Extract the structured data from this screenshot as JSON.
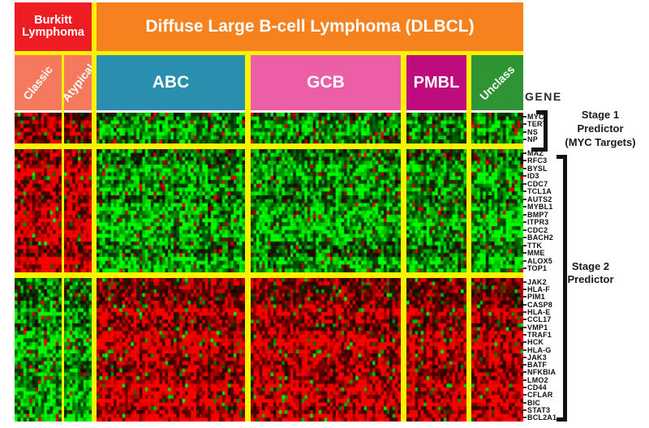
{
  "figure": {
    "bg_color": "#ffffff",
    "gene_axis_label": "GENE",
    "separator_color": "#FFF200",
    "text_color": "#1a1a1a"
  },
  "header": {
    "burkitt": {
      "lines": [
        "Burkitt",
        "Lymphoma"
      ],
      "color": "#EE1C23",
      "text_color": "#ffffff"
    },
    "dlbcl": {
      "label": "Diffuse Large B-cell Lymphoma (DLBCL)",
      "color": "#F6821F",
      "text_color": "#ffffff"
    }
  },
  "annotation_right": {
    "stage1": {
      "lines": [
        "Stage 1",
        "Predictor",
        "(MYC Targets)"
      ]
    },
    "stage2": {
      "lines": [
        "Stage 2",
        "Predictor"
      ]
    }
  },
  "chart_data": {
    "type": "heatmap",
    "title": "Gene expression heatmap: Burkitt Lymphoma vs Diffuse Large B-cell Lymphoma (DLBCL)",
    "colorscale": {
      "high": "#FF0000",
      "mid": "#000000",
      "low": "#00FF00",
      "legend": "red = high expression, green = low expression"
    },
    "column_groups": [
      {
        "id": "classic",
        "label": "Classic",
        "parent": "Burkitt Lymphoma",
        "color": "#F5795D",
        "samples": 16,
        "rotated": true
      },
      {
        "id": "atypical",
        "label": "Atypical",
        "parent": "Burkitt Lymphoma",
        "color": "#F5795D",
        "samples": 10,
        "rotated": true
      },
      {
        "id": "abc",
        "label": "ABC",
        "parent": "DLBCL",
        "color": "#2A8FAF",
        "samples": 52,
        "rotated": false
      },
      {
        "id": "gcb",
        "label": "GCB",
        "parent": "DLBCL",
        "color": "#EC5FA6",
        "samples": 53,
        "rotated": false
      },
      {
        "id": "pmbl",
        "label": "PMBL",
        "parent": "DLBCL",
        "color": "#BE0B7D",
        "samples": 21,
        "rotated": false
      },
      {
        "id": "unclass",
        "label": "Unclass",
        "parent": "DLBCL",
        "color": "#2E9434",
        "samples": 18,
        "rotated": true
      }
    ],
    "row_blocks": [
      {
        "id": "stage1_myc_targets",
        "annotation": "Stage 1 Predictor (MYC Targets)",
        "genes": [
          "MYC",
          "TERT",
          "NS",
          "NP"
        ],
        "expression": {
          "classic": "high",
          "atypical": "high",
          "abc": "low",
          "gcb": "low",
          "pmbl": "low",
          "unclass": "low"
        },
        "bias": {
          "classic": 0.72,
          "atypical": 0.7,
          "abc": -0.6,
          "gcb": -0.58,
          "pmbl": -0.55,
          "unclass": -0.6
        }
      },
      {
        "id": "stage2_upper",
        "annotation": "Stage 2 Predictor",
        "genes": [
          "MAZ",
          "RFC3",
          "BYSL",
          "ID3",
          "CDC7",
          "TCL1A",
          "AUTS2",
          "MYBL1",
          "BMP7",
          "ITPR3",
          "CDC2",
          "BACH2",
          "TTK",
          "MME",
          "ALOX5",
          "TOP1"
        ],
        "expression": {
          "classic": "high",
          "atypical": "high",
          "abc": "low",
          "gcb": "low",
          "pmbl": "low",
          "unclass": "low"
        },
        "bias": {
          "classic": 0.78,
          "atypical": 0.74,
          "abc": -0.55,
          "gcb": -0.5,
          "pmbl": -0.5,
          "unclass": -0.55
        }
      },
      {
        "id": "stage2_lower",
        "annotation": "Stage 2 Predictor",
        "genes": [
          "JAK2",
          "HLA-F",
          "PIM1",
          "CASP8",
          "HLA-E",
          "CCL17",
          "VMP1",
          "TRAF1",
          "HCK",
          "HLA-G",
          "JAK3",
          "BATF",
          "NFKBIA",
          "LMO2",
          "CD44",
          "CFLAR",
          "BIC",
          "STAT3",
          "BCL2A1"
        ],
        "expression": {
          "classic": "low",
          "atypical": "low",
          "abc": "high",
          "gcb": "high",
          "pmbl": "high",
          "unclass": "high"
        },
        "bias": {
          "classic": -0.7,
          "atypical": -0.62,
          "abc": 0.72,
          "gcb": 0.66,
          "pmbl": 0.7,
          "unclass": 0.62
        }
      }
    ]
  }
}
